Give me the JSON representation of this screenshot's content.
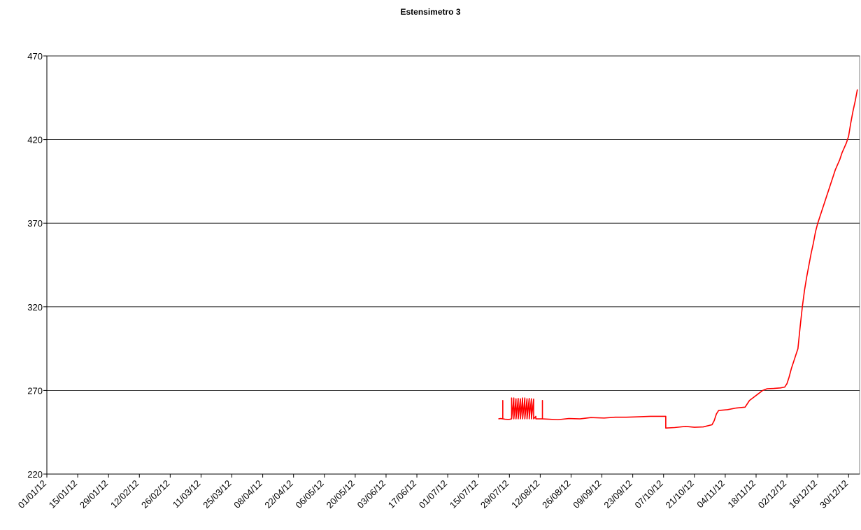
{
  "chart_data": {
    "type": "line",
    "title": "Estensimetro 3",
    "xlabel": "",
    "ylabel": "",
    "ylim": [
      220,
      470
    ],
    "yticks": [
      220,
      270,
      320,
      370,
      420,
      470
    ],
    "xlim": [
      "01/01/12",
      "04/01/13"
    ],
    "xticks": [
      "01/01/12",
      "15/01/12",
      "29/01/12",
      "12/02/12",
      "26/02/12",
      "11/03/12",
      "25/03/12",
      "08/04/12",
      "22/04/12",
      "06/05/12",
      "20/05/12",
      "03/06/12",
      "17/06/12",
      "01/07/12",
      "15/07/12",
      "29/07/12",
      "12/08/12",
      "26/08/12",
      "09/09/12",
      "23/09/12",
      "07/10/12",
      "21/10/12",
      "04/11/12",
      "18/11/12",
      "02/12/12",
      "16/12/12",
      "30/12/12"
    ],
    "grid": "horizontal",
    "legend": "none",
    "series": [
      {
        "color": "#ff0000",
        "points": [
          [
            "24/07/12",
            253
          ],
          [
            "25/07/12",
            253.2
          ],
          [
            "26/07/12",
            253
          ],
          [
            "26/07/12",
            264
          ],
          [
            "26/07/12",
            253
          ],
          [
            "27/07/12",
            252.8
          ],
          [
            "28/07/12",
            252.7
          ],
          [
            "29/07/12",
            252.7
          ],
          [
            "30/07/12",
            253
          ],
          [
            "30/07/12",
            265.5
          ],
          [
            "30/07/12",
            253
          ],
          [
            "31/07/12",
            265.5
          ],
          [
            "31/07/12",
            253
          ],
          [
            "01/08/12",
            265
          ],
          [
            "01/08/12",
            253
          ],
          [
            "02/08/12",
            265.2
          ],
          [
            "02/08/12",
            253
          ],
          [
            "03/08/12",
            265
          ],
          [
            "03/08/12",
            253
          ],
          [
            "04/08/12",
            265.5
          ],
          [
            "04/08/12",
            253
          ],
          [
            "05/08/12",
            265.5
          ],
          [
            "05/08/12",
            253
          ],
          [
            "06/08/12",
            265
          ],
          [
            "06/08/12",
            253
          ],
          [
            "07/08/12",
            265.2
          ],
          [
            "07/08/12",
            253
          ],
          [
            "08/08/12",
            265
          ],
          [
            "08/08/12",
            253
          ],
          [
            "09/08/12",
            264.8
          ],
          [
            "09/08/12",
            253
          ],
          [
            "10/08/12",
            254.5
          ],
          [
            "10/08/12",
            253
          ],
          [
            "13/08/12",
            253
          ],
          [
            "13/08/12",
            264
          ],
          [
            "13/08/12",
            253
          ],
          [
            "16/08/12",
            252.8
          ],
          [
            "20/08/12",
            252.5
          ],
          [
            "25/08/12",
            253.2
          ],
          [
            "30/08/12",
            253
          ],
          [
            "04/09/12",
            253.8
          ],
          [
            "10/09/12",
            253.5
          ],
          [
            "15/09/12",
            254
          ],
          [
            "20/09/12",
            254
          ],
          [
            "25/09/12",
            254.2
          ],
          [
            "01/10/12",
            254.5
          ],
          [
            "08/10/12",
            254.5
          ],
          [
            "08/10/12",
            247.5
          ],
          [
            "12/10/12",
            247.8
          ],
          [
            "17/10/12",
            248.5
          ],
          [
            "21/10/12",
            248
          ],
          [
            "25/10/12",
            248.2
          ],
          [
            "29/10/12",
            249.5
          ],
          [
            "30/10/12",
            252
          ],
          [
            "31/10/12",
            256
          ],
          [
            "01/11/12",
            258
          ],
          [
            "05/11/12",
            258.5
          ],
          [
            "09/11/12",
            259.5
          ],
          [
            "13/11/12",
            260
          ],
          [
            "14/11/12",
            262
          ],
          [
            "15/11/12",
            264
          ],
          [
            "17/11/12",
            266
          ],
          [
            "19/11/12",
            268
          ],
          [
            "21/11/12",
            270
          ],
          [
            "23/11/12",
            271
          ],
          [
            "26/11/12",
            271.2
          ],
          [
            "29/11/12",
            271.5
          ],
          [
            "01/12/12",
            272
          ],
          [
            "02/12/12",
            274
          ],
          [
            "03/12/12",
            278
          ],
          [
            "04/12/12",
            283
          ],
          [
            "05/12/12",
            287
          ],
          [
            "06/12/12",
            291
          ],
          [
            "07/12/12",
            295
          ],
          [
            "08/12/12",
            308
          ],
          [
            "09/12/12",
            320
          ],
          [
            "10/12/12",
            330
          ],
          [
            "11/12/12",
            338
          ],
          [
            "12/12/12",
            345
          ],
          [
            "13/12/12",
            352
          ],
          [
            "14/12/12",
            358
          ],
          [
            "15/12/12",
            365
          ],
          [
            "16/12/12",
            370
          ],
          [
            "17/12/12",
            374
          ],
          [
            "18/12/12",
            378
          ],
          [
            "19/12/12",
            382
          ],
          [
            "20/12/12",
            386
          ],
          [
            "21/12/12",
            390
          ],
          [
            "22/12/12",
            394
          ],
          [
            "23/12/12",
            398
          ],
          [
            "24/12/12",
            402
          ],
          [
            "25/12/12",
            405
          ],
          [
            "26/12/12",
            408
          ],
          [
            "27/12/12",
            412
          ],
          [
            "28/12/12",
            415
          ],
          [
            "29/12/12",
            418
          ],
          [
            "30/12/12",
            422
          ],
          [
            "31/12/12",
            430
          ],
          [
            "01/01/13",
            437
          ],
          [
            "02/01/13",
            443
          ],
          [
            "03/01/13",
            450
          ]
        ]
      }
    ]
  }
}
